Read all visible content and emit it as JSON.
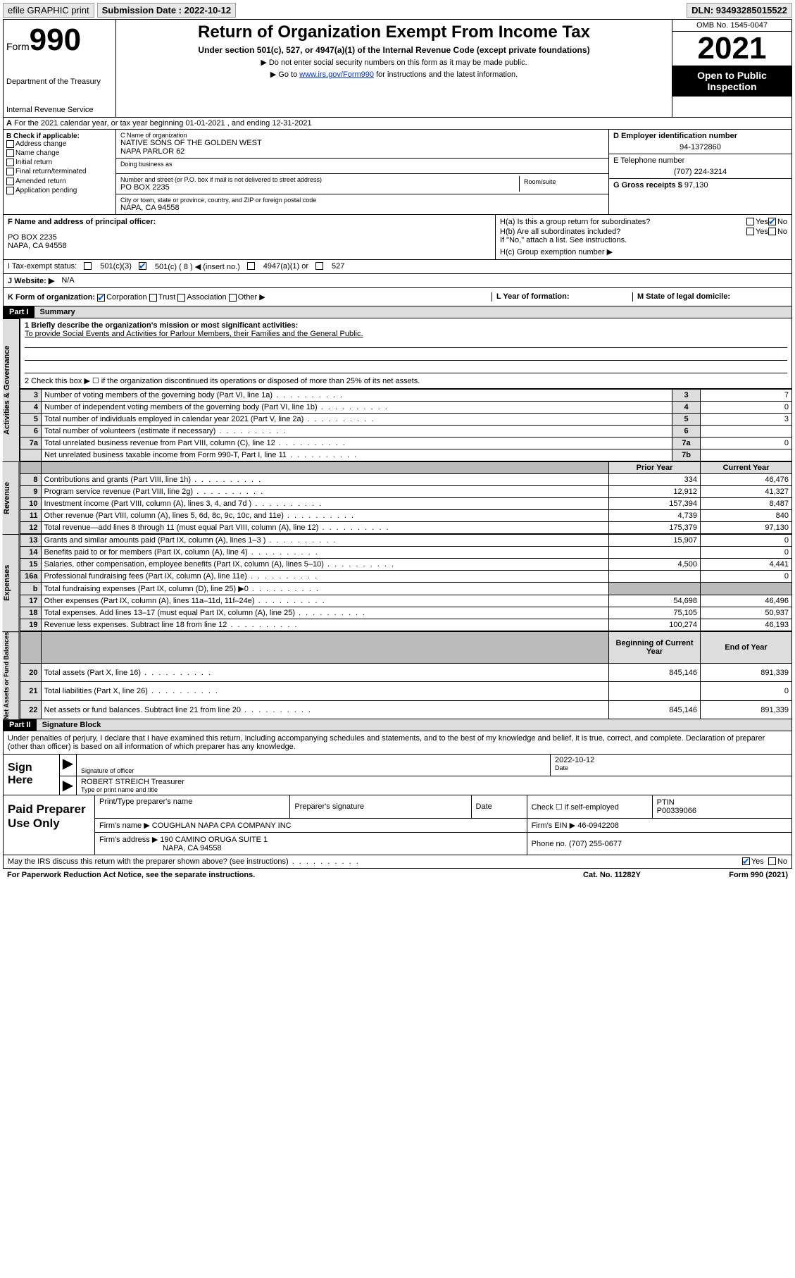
{
  "topbar": {
    "efile": "efile GRAPHIC print",
    "sub_label": "Submission Date : 2022-10-12",
    "dln": "DLN: 93493285015522"
  },
  "header": {
    "form_word": "Form",
    "form_num": "990",
    "dept": "Department of the Treasury",
    "irs": "Internal Revenue Service",
    "title": "Return of Organization Exempt From Income Tax",
    "sub": "Under section 501(c), 527, or 4947(a)(1) of the Internal Revenue Code (except private foundations)",
    "note1": "▶ Do not enter social security numbers on this form as it may be made public.",
    "note2_pre": "▶ Go to ",
    "note2_link": "www.irs.gov/Form990",
    "note2_post": " for instructions and the latest information.",
    "omb": "OMB No. 1545-0047",
    "year": "2021",
    "open": "Open to Public Inspection"
  },
  "line_a": "For the 2021 calendar year, or tax year beginning 01-01-2021  , and ending 12-31-2021",
  "col_b": {
    "title": "B Check if applicable:",
    "items": [
      "Address change",
      "Name change",
      "Initial return",
      "Final return/terminated",
      "Amended return",
      "Application pending"
    ]
  },
  "col_c": {
    "name_label": "C Name of organization",
    "name1": "NATIVE SONS OF THE GOLDEN WEST",
    "name2": "NAPA PARLOR 62",
    "dba_label": "Doing business as",
    "addr_label": "Number and street (or P.O. box if mail is not delivered to street address)",
    "room_label": "Room/suite",
    "addr": "PO BOX 2235",
    "city_label": "City or town, state or province, country, and ZIP or foreign postal code",
    "city": "NAPA, CA  94558"
  },
  "col_d": {
    "ein_label": "D Employer identification number",
    "ein": "94-1372860",
    "tel_label": "E Telephone number",
    "tel": "(707) 224-3214",
    "gross_label": "G Gross receipts $",
    "gross": "97,130"
  },
  "line_f": {
    "label": "F Name and address of principal officer:",
    "addr1": "PO BOX 2235",
    "addr2": "NAPA, CA  94558"
  },
  "line_h": {
    "ha": "H(a)  Is this a group return for subordinates?",
    "hb": "H(b)  Are all subordinates included?",
    "hb_note": "If \"No,\" attach a list. See instructions.",
    "hc": "H(c)  Group exemption number ▶"
  },
  "line_i": {
    "label": "I    Tax-exempt status:",
    "o1": "501(c)(3)",
    "o2": "501(c) ( 8 ) ◀ (insert no.)",
    "o3": "4947(a)(1) or",
    "o4": "527"
  },
  "line_j": {
    "label": "J   Website: ▶",
    "val": "N/A"
  },
  "line_k": {
    "label": "K Form of organization:",
    "o1": "Corporation",
    "o2": "Trust",
    "o3": "Association",
    "o4": "Other ▶",
    "l": "L Year of formation:",
    "m": "M State of legal domicile:"
  },
  "parts": {
    "p1": "Part I",
    "p1t": "Summary",
    "p2": "Part II",
    "p2t": "Signature Block"
  },
  "summary": {
    "q1_label": "1   Briefly describe the organization's mission or most significant activities:",
    "q1_val": "To provide Social Events and Activities for Parlour Members, their Families and the General Public.",
    "q2": "2   Check this box ▶ ☐ if the organization discontinued its operations or disposed of more than 25% of its net assets.",
    "sideA": "Activities & Governance",
    "sideR": "Revenue",
    "sideE": "Expenses",
    "sideN": "Net Assets or Fund Balances",
    "rows_gov": [
      {
        "n": "3",
        "d": "Number of voting members of the governing body (Part VI, line 1a)",
        "b": "3",
        "v": "7"
      },
      {
        "n": "4",
        "d": "Number of independent voting members of the governing body (Part VI, line 1b)",
        "b": "4",
        "v": "0"
      },
      {
        "n": "5",
        "d": "Total number of individuals employed in calendar year 2021 (Part V, line 2a)",
        "b": "5",
        "v": "3"
      },
      {
        "n": "6",
        "d": "Total number of volunteers (estimate if necessary)",
        "b": "6",
        "v": ""
      },
      {
        "n": "7a",
        "d": "Total unrelated business revenue from Part VIII, column (C), line 12",
        "b": "7a",
        "v": "0"
      },
      {
        "n": "",
        "d": "Net unrelated business taxable income from Form 990-T, Part I, line 11",
        "b": "7b",
        "v": ""
      }
    ],
    "hdr_prior": "Prior Year",
    "hdr_curr": "Current Year",
    "rows_rev": [
      {
        "n": "8",
        "d": "Contributions and grants (Part VIII, line 1h)",
        "p": "334",
        "c": "46,476"
      },
      {
        "n": "9",
        "d": "Program service revenue (Part VIII, line 2g)",
        "p": "12,912",
        "c": "41,327"
      },
      {
        "n": "10",
        "d": "Investment income (Part VIII, column (A), lines 3, 4, and 7d )",
        "p": "157,394",
        "c": "8,487"
      },
      {
        "n": "11",
        "d": "Other revenue (Part VIII, column (A), lines 5, 6d, 8c, 9c, 10c, and 11e)",
        "p": "4,739",
        "c": "840"
      },
      {
        "n": "12",
        "d": "Total revenue—add lines 8 through 11 (must equal Part VIII, column (A), line 12)",
        "p": "175,379",
        "c": "97,130"
      }
    ],
    "rows_exp": [
      {
        "n": "13",
        "d": "Grants and similar amounts paid (Part IX, column (A), lines 1–3 )",
        "p": "15,907",
        "c": "0"
      },
      {
        "n": "14",
        "d": "Benefits paid to or for members (Part IX, column (A), line 4)",
        "p": "",
        "c": "0"
      },
      {
        "n": "15",
        "d": "Salaries, other compensation, employee benefits (Part IX, column (A), lines 5–10)",
        "p": "4,500",
        "c": "4,441"
      },
      {
        "n": "16a",
        "d": "Professional fundraising fees (Part IX, column (A), line 11e)",
        "p": "",
        "c": "0"
      },
      {
        "n": "b",
        "d": "Total fundraising expenses (Part IX, column (D), line 25) ▶0",
        "p": "__GREY__",
        "c": "__GREY__"
      },
      {
        "n": "17",
        "d": "Other expenses (Part IX, column (A), lines 11a–11d, 11f–24e)",
        "p": "54,698",
        "c": "46,496"
      },
      {
        "n": "18",
        "d": "Total expenses. Add lines 13–17 (must equal Part IX, column (A), line 25)",
        "p": "75,105",
        "c": "50,937"
      },
      {
        "n": "19",
        "d": "Revenue less expenses. Subtract line 18 from line 12",
        "p": "100,274",
        "c": "46,193"
      }
    ],
    "hdr_beg": "Beginning of Current Year",
    "hdr_end": "End of Year",
    "rows_net": [
      {
        "n": "20",
        "d": "Total assets (Part X, line 16)",
        "p": "845,146",
        "c": "891,339"
      },
      {
        "n": "21",
        "d": "Total liabilities (Part X, line 26)",
        "p": "",
        "c": "0"
      },
      {
        "n": "22",
        "d": "Net assets or fund balances. Subtract line 21 from line 20",
        "p": "845,146",
        "c": "891,339"
      }
    ]
  },
  "sig": {
    "intro": "Under penalties of perjury, I declare that I have examined this return, including accompanying schedules and statements, and to the best of my knowledge and belief, it is true, correct, and complete. Declaration of preparer (other than officer) is based on all information of which preparer has any knowledge.",
    "sign_here": "Sign Here",
    "sig_officer": "Signature of officer",
    "date_val": "2022-10-12",
    "date_lbl": "Date",
    "name_title": "ROBERT STREICH  Treasurer",
    "name_lbl": "Type or print name and title"
  },
  "prep": {
    "title": "Paid Preparer Use Only",
    "h1": "Print/Type preparer's name",
    "h2": "Preparer's signature",
    "h3": "Date",
    "h4_pre": "Check ☐ if self-employed",
    "h5": "PTIN",
    "ptin": "P00339066",
    "firm_name_lbl": "Firm's name    ▶",
    "firm_name": "COUGHLAN NAPA CPA COMPANY INC",
    "firm_ein_lbl": "Firm's EIN ▶",
    "firm_ein": "46-0942208",
    "firm_addr_lbl": "Firm's address ▶",
    "firm_addr1": "190 CAMINO ORUGA SUITE 1",
    "firm_addr2": "NAPA, CA  94558",
    "phone_lbl": "Phone no.",
    "phone": "(707) 255-0677"
  },
  "foot": {
    "q": "May the IRS discuss this return with the preparer shown above? (see instructions)",
    "yes": "Yes",
    "no": "No",
    "pra": "For Paperwork Reduction Act Notice, see the separate instructions.",
    "cat": "Cat. No. 11282Y",
    "form": "Form 990 (2021)"
  }
}
